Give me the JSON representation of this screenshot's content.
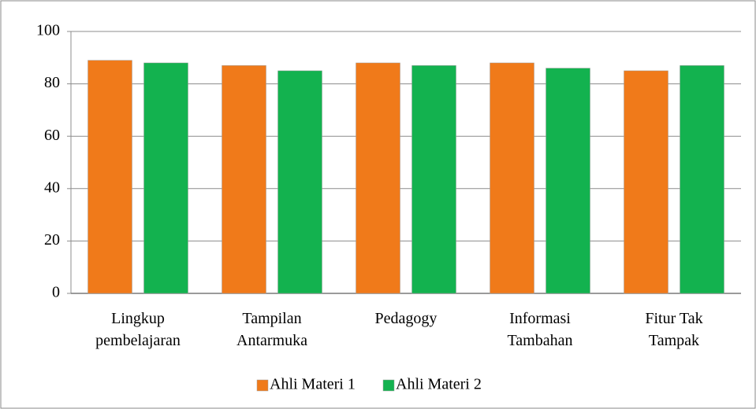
{
  "chart_data": {
    "type": "bar",
    "categories": [
      "Lingkup pembelajaran",
      "Tampilan Antarmuka",
      "Pedagogy",
      "Informasi Tambahan",
      "Fitur Tak Tampak"
    ],
    "series": [
      {
        "name": "Ahli Materi 1",
        "color": "#f07a1a",
        "values": [
          89,
          87,
          88,
          88,
          85
        ]
      },
      {
        "name": "Ahli Materi 2",
        "color": "#13b24f",
        "values": [
          88,
          85,
          87,
          86,
          87
        ]
      }
    ],
    "ylim": [
      0,
      100
    ],
    "yticks": [
      0,
      20,
      40,
      60,
      80,
      100
    ],
    "grid": true,
    "legend": "bottom"
  }
}
